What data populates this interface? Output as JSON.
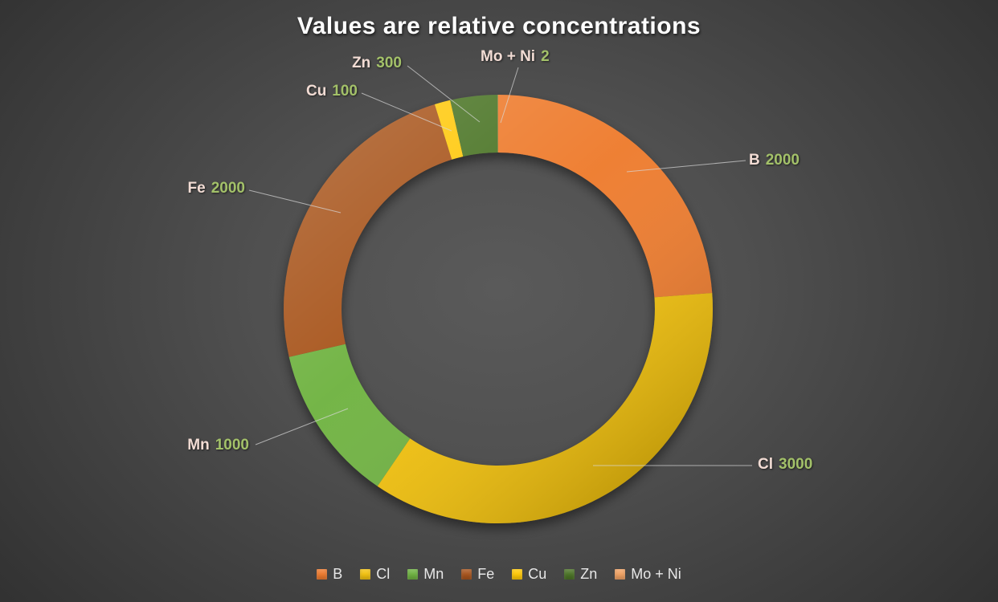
{
  "title": "Values are relative concentrations",
  "chart_data": {
    "type": "pie",
    "subtype": "donut",
    "title": "Values are relative concentrations",
    "categories": [
      "B",
      "Cl",
      "Mn",
      "Fe",
      "Cu",
      "Zn",
      "Mo + Ni"
    ],
    "values": [
      2000,
      3000,
      1000,
      2000,
      100,
      300,
      2
    ],
    "colors": [
      "#EE7B2F",
      "#F3C211",
      "#6FB342",
      "#A8551E",
      "#FFC908",
      "#4C7427",
      "#F0A264"
    ],
    "legend_position": "bottom",
    "start_angle_deg": 0,
    "direction": "clockwise",
    "data_label_format": "category value",
    "label_name_color": "#F2DCD4",
    "label_value_color": "#A3C169",
    "background_color": "#4a4a4a",
    "title_color": "#FFFFFF",
    "legend_text_color": "#E8E8E8"
  }
}
